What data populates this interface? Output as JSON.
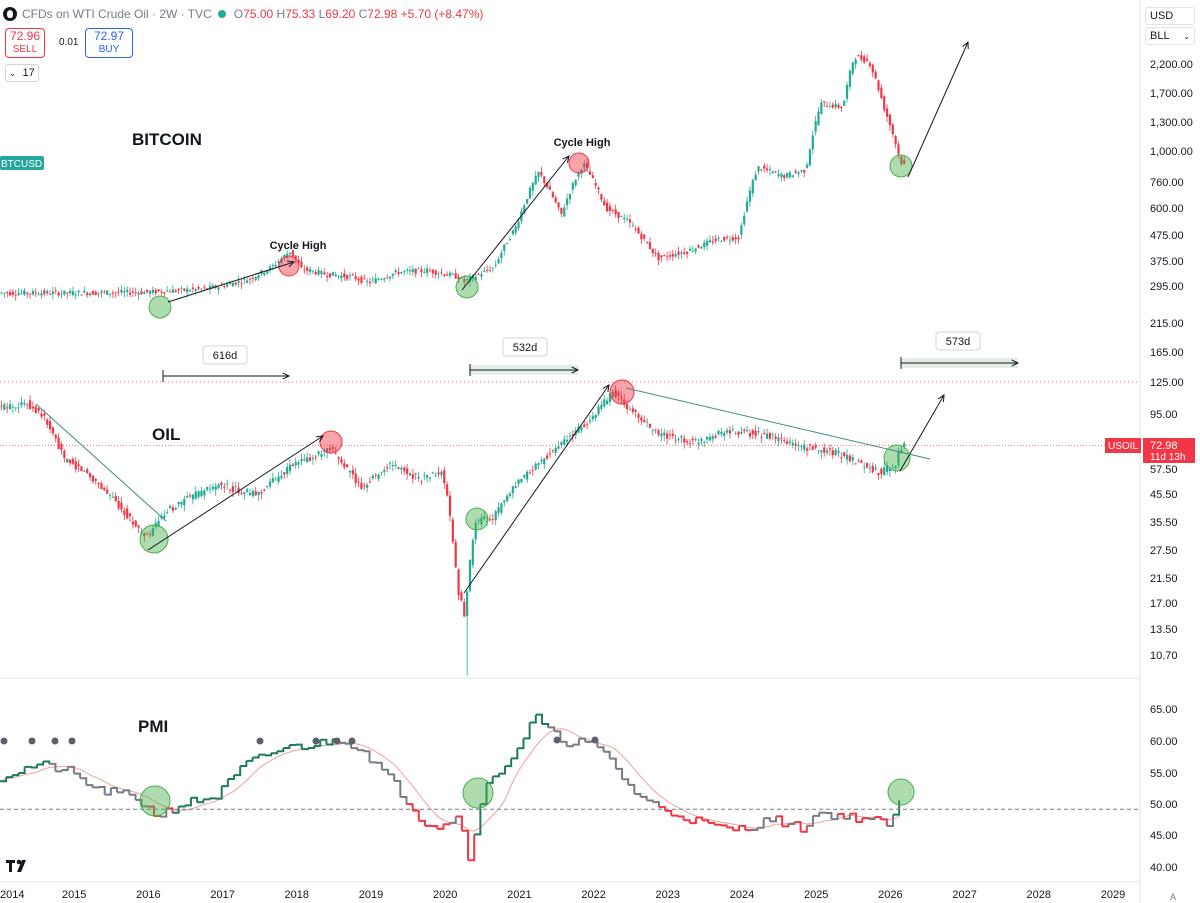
{
  "header": {
    "title": "CFDs on WTI Crude Oil · 2W · TVC",
    "ohlc": {
      "o": "75.00",
      "h": "75.33",
      "l": "69.20",
      "c": "72.98",
      "change": "+5.70 (+8.47%)"
    }
  },
  "trade": {
    "sell_price": "72.96",
    "sell_label": "SELL",
    "spread": "0.01",
    "buy_price": "72.97",
    "buy_label": "BUY"
  },
  "lot_size": "17",
  "currency": "USD",
  "unit": "BLL",
  "chart_data": [
    {
      "type": "line",
      "title": "BITCOIN",
      "symbol_tag": "BTCUSD",
      "scale": "log",
      "x": [
        2014.0,
        2015.0,
        2016.0,
        2016.3,
        2016.8,
        2017.0,
        2017.4,
        2017.7,
        2017.95,
        2018.1,
        2018.4,
        2018.8,
        2019.0,
        2019.4,
        2019.8,
        2020.2,
        2020.3,
        2020.7,
        2021.0,
        2021.3,
        2021.6,
        2021.9,
        2022.2,
        2022.5,
        2022.9,
        2023.3,
        2023.7,
        2024.0,
        2024.25,
        2024.6,
        2024.9,
        2025.1,
        2025.4,
        2025.55,
        2025.75,
        2025.95,
        2026.15,
        2026.2
      ],
      "y": [
        268,
        268,
        270,
        273,
        278,
        285,
        305,
        340,
        395,
        335,
        320,
        310,
        295,
        325,
        330,
        312,
        298,
        340,
        500,
        820,
        550,
        890,
        590,
        520,
        370,
        395,
        440,
        450,
        860,
        790,
        840,
        1550,
        1500,
        2400,
        2300,
        1500,
        960,
        880
      ],
      "right_axis_ticks": [
        "2,200.00",
        "1,700.00",
        "1,300.00",
        "1,000.00",
        "760.00",
        "600.00",
        "475.00",
        "375.00",
        "295.00",
        "215.00",
        "165.00",
        "125.00"
      ],
      "annotations": [
        "Cycle High",
        "Cycle High"
      ]
    },
    {
      "type": "candlestick",
      "title": "OIL",
      "symbol_tag": "USOIL",
      "last_price": "72.98",
      "countdown": "11d 13h",
      "scale": "log",
      "x": [
        2014.0,
        2014.4,
        2014.6,
        2014.9,
        2015.2,
        2015.6,
        2016.0,
        2016.3,
        2016.6,
        2017.0,
        2017.5,
        2018.0,
        2018.5,
        2018.9,
        2019.3,
        2019.7,
        2020.0,
        2020.2,
        2020.3,
        2020.45,
        2020.7,
        2021.0,
        2021.5,
        2022.0,
        2022.3,
        2022.5,
        2022.9,
        2023.4,
        2023.8,
        2024.3,
        2024.8,
        2025.2,
        2025.5,
        2025.9,
        2026.1,
        2026.2
      ],
      "y": [
        100,
        104,
        95,
        65,
        58,
        45,
        33,
        42,
        47,
        52,
        48,
        62,
        70,
        51,
        62,
        55,
        58,
        22,
        17,
        38,
        40,
        52,
        70,
        90,
        115,
        100,
        80,
        75,
        82,
        80,
        72,
        70,
        65,
        58,
        62,
        72.98
      ],
      "right_axis_ticks": [
        "95.00",
        "72.98",
        "57.50",
        "45.50",
        "35.50",
        "27.50",
        "21.50",
        "17.00",
        "13.50",
        "10.70"
      ]
    },
    {
      "type": "line",
      "title": "PMI",
      "x": [
        2014.0,
        2014.5,
        2014.9,
        2015.3,
        2015.8,
        2016.1,
        2016.5,
        2016.9,
        2017.3,
        2017.8,
        2018.2,
        2018.6,
        2018.9,
        2019.3,
        2019.7,
        2019.9,
        2020.2,
        2020.3,
        2020.5,
        2020.7,
        2021.0,
        2021.2,
        2021.4,
        2021.6,
        2021.9,
        2022.2,
        2022.5,
        2022.9,
        2023.3,
        2023.7,
        2024.0,
        2024.4,
        2024.8,
        2025.0,
        2025.3,
        2025.7,
        2026.0,
        2026.1,
        2026.2
      ],
      "y": [
        55,
        57,
        56,
        53,
        52,
        49,
        51,
        52,
        57,
        59.5,
        60,
        61,
        59,
        54,
        48,
        47.5,
        49,
        41.5,
        53,
        55.5,
        60,
        64.5,
        62,
        60.5,
        60.5,
        58,
        53,
        50,
        48.5,
        47,
        47,
        48.5,
        47,
        49.5,
        49,
        48.5,
        47.5,
        51,
        52
      ],
      "threshold": 50,
      "right_axis_ticks": [
        "65.00",
        "60.00",
        "55.00",
        "50.00",
        "45.00",
        "40.00"
      ]
    }
  ],
  "x_axis_labels": [
    "2014",
    "2015",
    "2016",
    "2017",
    "2018",
    "2019",
    "2020",
    "2021",
    "2022",
    "2023",
    "2024",
    "2025",
    "2026",
    "2027",
    "2028",
    "2029"
  ],
  "duration_labels": [
    "616d",
    "532d",
    "573d"
  ],
  "colors": {
    "up": "#22ab94",
    "down": "#f23645",
    "pmi_line": "#1e7a5c",
    "pmi_neutral": "#787b86",
    "ma": "#f0a0a0"
  },
  "watermark": "TradingView",
  "autoscale_label": "A"
}
